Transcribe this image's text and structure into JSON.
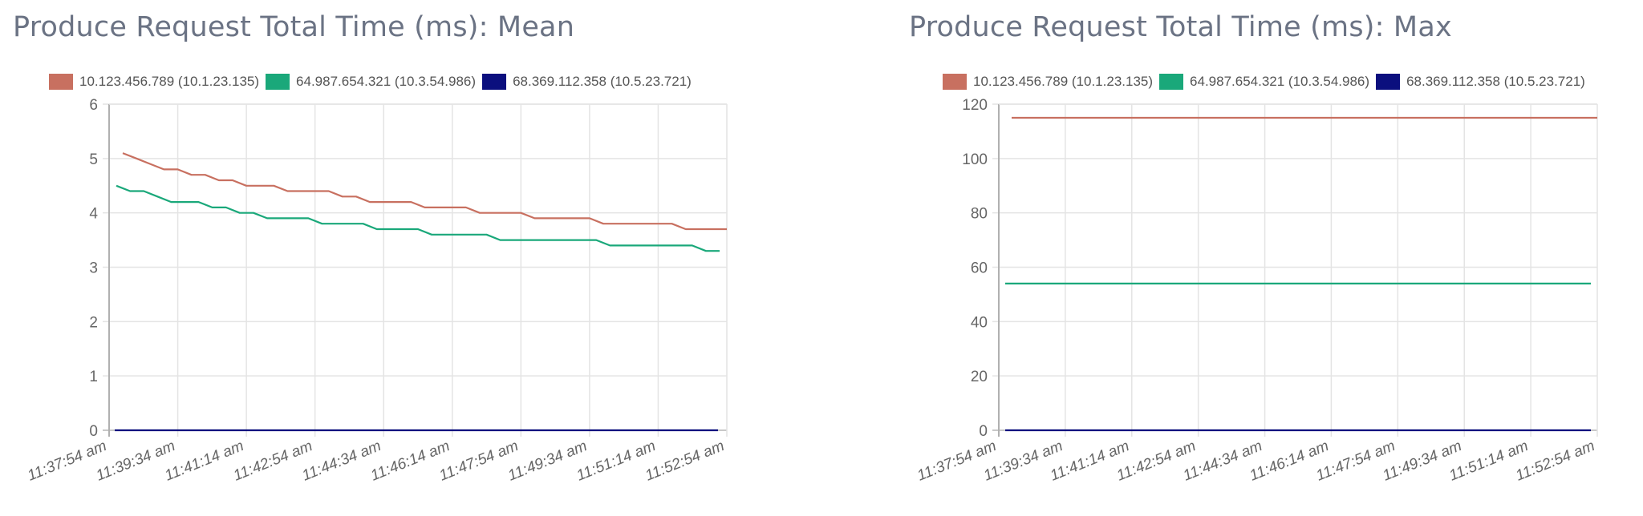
{
  "colors": {
    "series_red": "#c87060",
    "series_green": "#1aa87a",
    "series_blue": "#0b0f7e",
    "grid": "#e4e4e4",
    "axis": "#b0b0b0"
  },
  "chart_data": [
    {
      "type": "line",
      "title": "Produce Request Total Time (ms): Mean",
      "xlabel": "",
      "ylabel": "",
      "ylim": [
        0,
        6
      ],
      "yticks": [
        "0",
        "1",
        "2",
        "3",
        "4",
        "5",
        "6"
      ],
      "x_tick_labels": [
        "11:37:54 am",
        "11:39:34 am",
        "11:41:14 am",
        "11:42:54 am",
        "11:44:34 am",
        "11:46:14 am",
        "11:47:54 am",
        "11:49:34 am",
        "11:51:14 am",
        "11:52:54 am"
      ],
      "grid": true,
      "legend_position": "top",
      "series": [
        {
          "name": "10.123.456.789 (10.1.23.135)",
          "color": "#c87060",
          "values": [
            5.1,
            5.0,
            4.9,
            4.8,
            4.8,
            4.7,
            4.7,
            4.6,
            4.6,
            4.5,
            4.5,
            4.5,
            4.4,
            4.4,
            4.4,
            4.4,
            4.3,
            4.3,
            4.2,
            4.2,
            4.2,
            4.2,
            4.1,
            4.1,
            4.1,
            4.1,
            4.0,
            4.0,
            4.0,
            4.0,
            3.9,
            3.9,
            3.9,
            3.9,
            3.9,
            3.8,
            3.8,
            3.8,
            3.8,
            3.8,
            3.8,
            3.7,
            3.7,
            3.7,
            3.7
          ]
        },
        {
          "name": "64.987.654.321 (10.3.54.986)",
          "color": "#1aa87a",
          "values": [
            4.5,
            4.4,
            4.4,
            4.3,
            4.2,
            4.2,
            4.2,
            4.1,
            4.1,
            4.0,
            4.0,
            3.9,
            3.9,
            3.9,
            3.9,
            3.8,
            3.8,
            3.8,
            3.8,
            3.7,
            3.7,
            3.7,
            3.7,
            3.6,
            3.6,
            3.6,
            3.6,
            3.6,
            3.5,
            3.5,
            3.5,
            3.5,
            3.5,
            3.5,
            3.5,
            3.5,
            3.4,
            3.4,
            3.4,
            3.4,
            3.4,
            3.4,
            3.4,
            3.3,
            3.3
          ]
        },
        {
          "name": "68.369.112.358 (10.5.23.721)",
          "color": "#0b0f7e",
          "values": [
            0,
            0,
            0,
            0,
            0,
            0,
            0,
            0,
            0,
            0,
            0,
            0,
            0,
            0,
            0,
            0,
            0,
            0,
            0,
            0,
            0,
            0,
            0,
            0,
            0,
            0,
            0,
            0,
            0,
            0,
            0,
            0,
            0,
            0,
            0,
            0,
            0,
            0,
            0,
            0,
            0,
            0,
            0,
            0,
            0
          ]
        }
      ]
    },
    {
      "type": "line",
      "title": "Produce Request Total Time (ms): Max",
      "xlabel": "",
      "ylabel": "",
      "ylim": [
        0,
        120
      ],
      "yticks": [
        "0",
        "20",
        "40",
        "60",
        "80",
        "100",
        "120"
      ],
      "x_tick_labels": [
        "11:37:54 am",
        "11:39:34 am",
        "11:41:14 am",
        "11:42:54 am",
        "11:44:34 am",
        "11:46:14 am",
        "11:47:54 am",
        "11:49:34 am",
        "11:51:14 am",
        "11:52:54 am"
      ],
      "grid": true,
      "legend_position": "top",
      "series": [
        {
          "name": "10.123.456.789 (10.1.23.135)",
          "color": "#c87060",
          "values": [
            115,
            115,
            115,
            115,
            115,
            115,
            115,
            115,
            115,
            115,
            115,
            115,
            115,
            115,
            115,
            115,
            115,
            115,
            115,
            115,
            115,
            115,
            115,
            115,
            115,
            115,
            115,
            115,
            115,
            115,
            115,
            115,
            115,
            115,
            115,
            115,
            115,
            115,
            115,
            115,
            115,
            115,
            115,
            115,
            115
          ]
        },
        {
          "name": "64.987.654.321 (10.3.54.986)",
          "color": "#1aa87a",
          "values": [
            54,
            54,
            54,
            54,
            54,
            54,
            54,
            54,
            54,
            54,
            54,
            54,
            54,
            54,
            54,
            54,
            54,
            54,
            54,
            54,
            54,
            54,
            54,
            54,
            54,
            54,
            54,
            54,
            54,
            54,
            54,
            54,
            54,
            54,
            54,
            54,
            54,
            54,
            54,
            54,
            54,
            54,
            54,
            54,
            54
          ]
        },
        {
          "name": "68.369.112.358 (10.5.23.721)",
          "color": "#0b0f7e",
          "values": [
            0,
            0,
            0,
            0,
            0,
            0,
            0,
            0,
            0,
            0,
            0,
            0,
            0,
            0,
            0,
            0,
            0,
            0,
            0,
            0,
            0,
            0,
            0,
            0,
            0,
            0,
            0,
            0,
            0,
            0,
            0,
            0,
            0,
            0,
            0,
            0,
            0,
            0,
            0,
            0,
            0,
            0,
            0,
            0,
            0
          ]
        }
      ]
    }
  ]
}
